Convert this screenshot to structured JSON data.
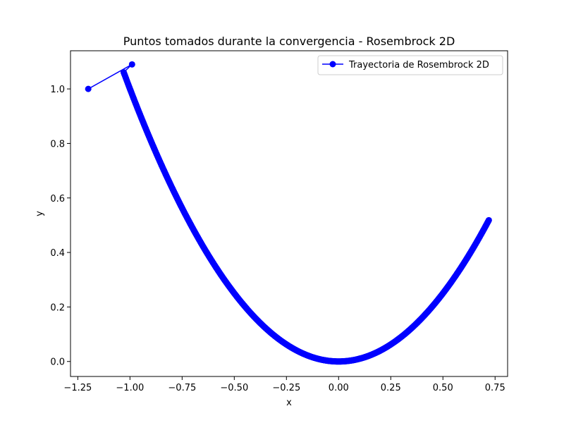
{
  "chart_data": {
    "type": "line",
    "title": "Puntos tomados durante la convergencia - Rosembrock 2D",
    "xlabel": "x",
    "ylabel": "y",
    "xlim": [
      -1.285,
      0.81
    ],
    "ylim": [
      -0.055,
      1.14
    ],
    "xticks": [
      -1.25,
      -1.0,
      -0.75,
      -0.5,
      -0.25,
      0.0,
      0.25,
      0.5,
      0.75
    ],
    "xtick_labels": [
      "−1.25",
      "−1.00",
      "−0.75",
      "−0.50",
      "−0.25",
      "0.00",
      "0.25",
      "0.50",
      "0.75"
    ],
    "yticks": [
      0.0,
      0.2,
      0.4,
      0.6,
      0.8,
      1.0
    ],
    "ytick_labels": [
      "0.0",
      "0.2",
      "0.4",
      "0.6",
      "0.8",
      "1.0"
    ],
    "grid": false,
    "legend_position": "upper right",
    "series": [
      {
        "name": "Trayectoria de Rosembrock 2D",
        "color": "#0000ff",
        "marker": "circle",
        "x_start": -1.2,
        "y_start": 1.0,
        "x_second": -0.99,
        "y_second": 1.09,
        "x_path_start": -1.03,
        "x_end": 0.72,
        "relation": "y = x^2",
        "sample_count": 700
      }
    ]
  }
}
